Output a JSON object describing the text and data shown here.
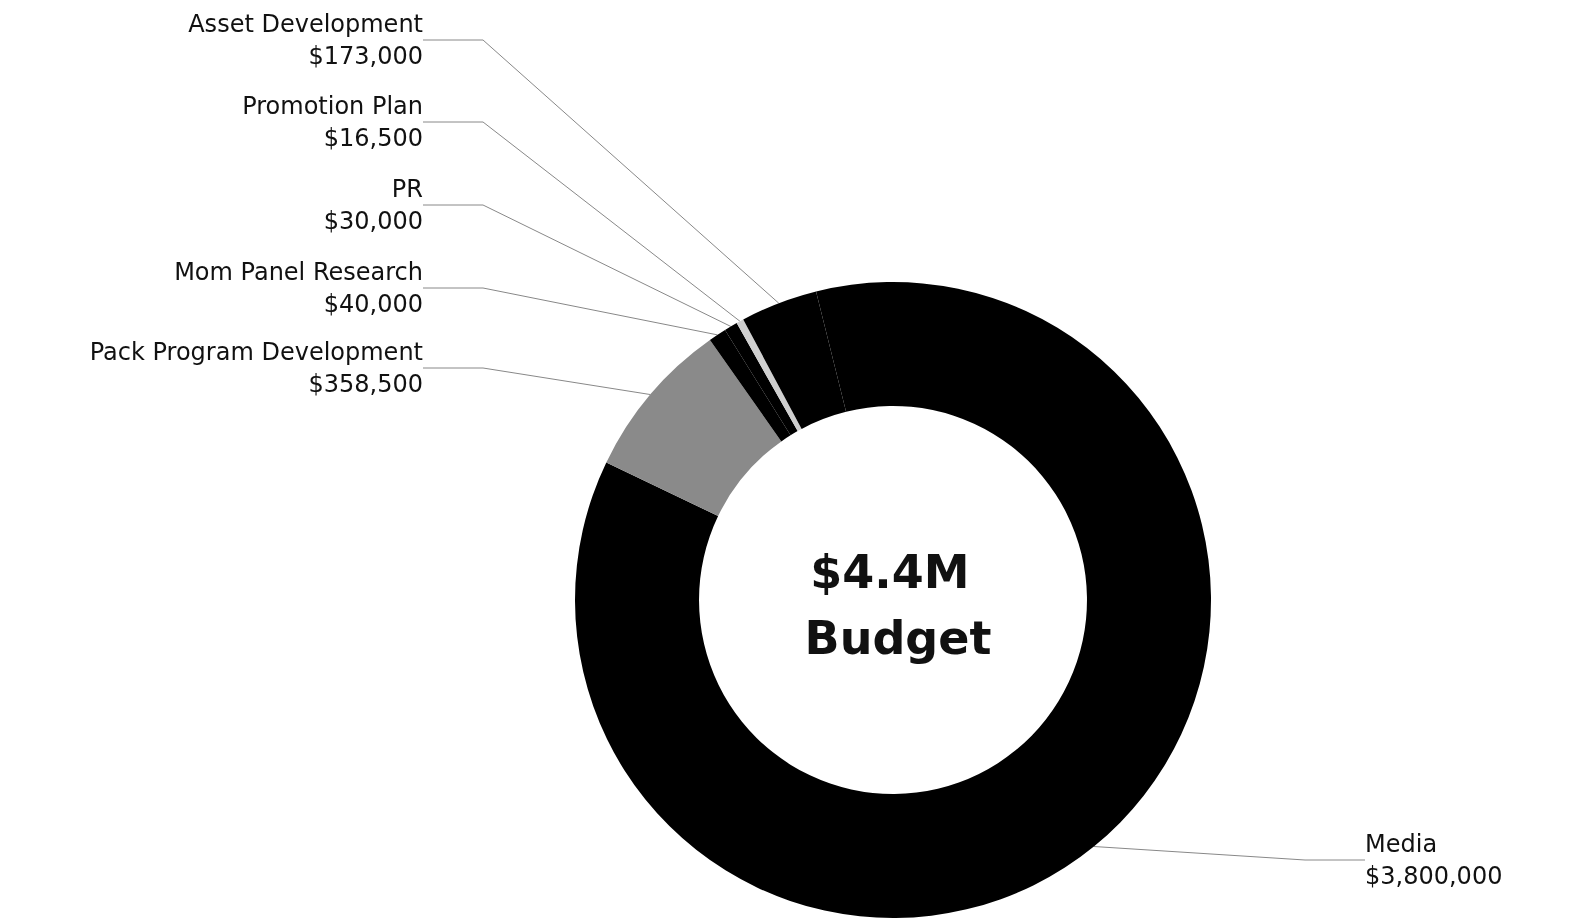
{
  "chart_data": {
    "type": "donut",
    "title": "$4.4M Budget",
    "categories": [
      "Media",
      "Pack Program Development",
      "Mom Panel Research",
      "PR",
      "Promotion Plan",
      "Asset Development"
    ],
    "values": [
      3800000,
      358500,
      40000,
      30000,
      16500,
      173000
    ],
    "value_labels": [
      "$3,800,000",
      "$358,500",
      "$40,000",
      "$30,000",
      "$16,500",
      "$173,000"
    ],
    "colors": [
      "#000000",
      "#8a8a8a",
      "#000000",
      "#000000",
      "#cfcfcf",
      "#000000"
    ],
    "legend": false
  }
}
